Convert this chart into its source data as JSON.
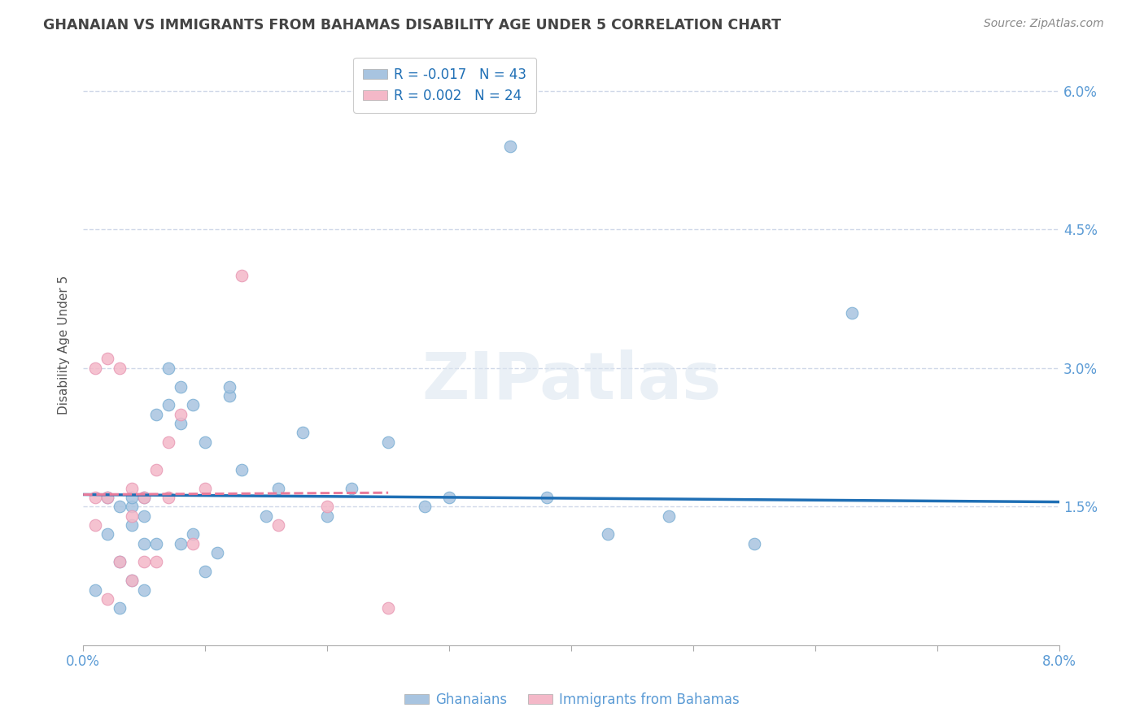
{
  "title": "GHANAIAN VS IMMIGRANTS FROM BAHAMAS DISABILITY AGE UNDER 5 CORRELATION CHART",
  "source": "Source: ZipAtlas.com",
  "xlabel": "",
  "ylabel": "Disability Age Under 5",
  "watermark": "ZIPatlas",
  "legend_blue_R": "-0.017",
  "legend_blue_N": "43",
  "legend_pink_R": "0.002",
  "legend_pink_N": "24",
  "xlim": [
    0.0,
    0.08
  ],
  "ylim": [
    0.0,
    0.065
  ],
  "xticks": [
    0.0,
    0.01,
    0.02,
    0.03,
    0.04,
    0.05,
    0.06,
    0.07,
    0.08
  ],
  "xtick_labels_show": [
    "0.0%",
    "",
    "",
    "",
    "",
    "",
    "",
    "",
    "8.0%"
  ],
  "yticks": [
    0.015,
    0.03,
    0.045,
    0.06
  ],
  "ytick_labels": [
    "1.5%",
    "3.0%",
    "4.5%",
    "6.0%"
  ],
  "blue_color": "#a8c4e0",
  "pink_color": "#f4b8c8",
  "blue_line_color": "#1f6fb5",
  "pink_line_color": "#e87a9a",
  "grid_color": "#d0d8e8",
  "title_color": "#444444",
  "right_tick_color": "#5b9bd5",
  "ghanaians_x": [
    0.001,
    0.002,
    0.002,
    0.003,
    0.003,
    0.003,
    0.004,
    0.004,
    0.004,
    0.004,
    0.005,
    0.005,
    0.005,
    0.005,
    0.006,
    0.006,
    0.007,
    0.007,
    0.008,
    0.008,
    0.008,
    0.009,
    0.009,
    0.01,
    0.01,
    0.011,
    0.012,
    0.012,
    0.013,
    0.015,
    0.016,
    0.018,
    0.02,
    0.022,
    0.025,
    0.028,
    0.03,
    0.035,
    0.038,
    0.043,
    0.048,
    0.055,
    0.063
  ],
  "ghanaians_y": [
    0.006,
    0.012,
    0.016,
    0.004,
    0.009,
    0.015,
    0.007,
    0.013,
    0.015,
    0.016,
    0.006,
    0.011,
    0.014,
    0.016,
    0.011,
    0.025,
    0.026,
    0.03,
    0.011,
    0.024,
    0.028,
    0.012,
    0.026,
    0.008,
    0.022,
    0.01,
    0.027,
    0.028,
    0.019,
    0.014,
    0.017,
    0.023,
    0.014,
    0.017,
    0.022,
    0.015,
    0.016,
    0.054,
    0.016,
    0.012,
    0.014,
    0.011,
    0.036
  ],
  "bahamas_x": [
    0.001,
    0.001,
    0.001,
    0.002,
    0.002,
    0.002,
    0.003,
    0.003,
    0.004,
    0.004,
    0.004,
    0.005,
    0.005,
    0.006,
    0.006,
    0.007,
    0.007,
    0.008,
    0.009,
    0.01,
    0.013,
    0.016,
    0.02,
    0.025
  ],
  "bahamas_y": [
    0.013,
    0.016,
    0.03,
    0.005,
    0.016,
    0.031,
    0.009,
    0.03,
    0.007,
    0.014,
    0.017,
    0.009,
    0.016,
    0.009,
    0.019,
    0.016,
    0.022,
    0.025,
    0.011,
    0.017,
    0.04,
    0.013,
    0.015,
    0.004
  ],
  "blue_trend_x": [
    0.0,
    0.08
  ],
  "blue_trend_y": [
    0.0163,
    0.0155
  ],
  "pink_trend_x": [
    0.0,
    0.025
  ],
  "pink_trend_y": [
    0.0163,
    0.0165
  ],
  "marker_size": 110
}
